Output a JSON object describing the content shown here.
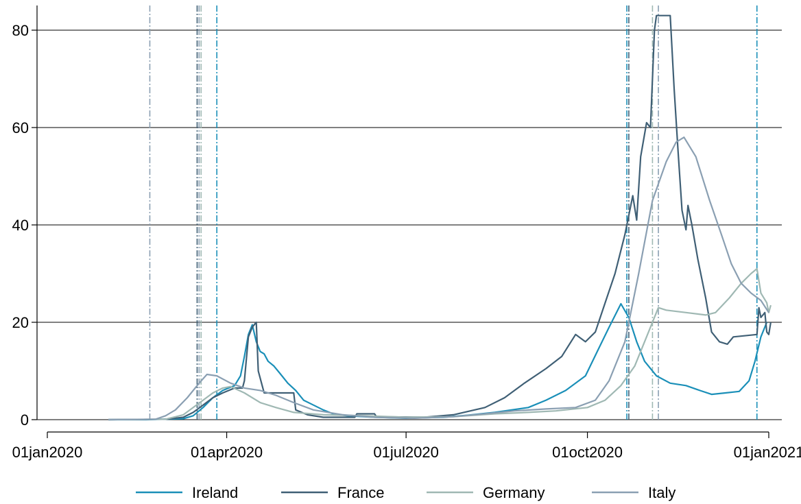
{
  "chart_data": {
    "type": "line",
    "title": "",
    "xlabel": "",
    "ylabel": "",
    "xlim": [
      "2020-01-01",
      "2021-01-01"
    ],
    "ylim": [
      0,
      84
    ],
    "yticks": [
      0,
      20,
      40,
      60,
      80
    ],
    "xticks": [
      {
        "date": "2020-01-01",
        "label": "01jan2020"
      },
      {
        "date": "2020-04-01",
        "label": "01apr2020"
      },
      {
        "date": "2020-07-01",
        "label": "01jul2020"
      },
      {
        "date": "2020-10-01",
        "label": "01oct2020"
      },
      {
        "date": "2021-01-01",
        "label": "01jan2021"
      }
    ],
    "grid": "horizontal",
    "legend_position": "bottom",
    "series": [
      {
        "name": "Ireland",
        "color": "#1a8fb8",
        "points": [
          [
            "2020-02-01",
            0
          ],
          [
            "2020-02-20",
            0
          ],
          [
            "2020-03-10",
            0.2
          ],
          [
            "2020-03-15",
            0.8
          ],
          [
            "2020-03-20",
            2.5
          ],
          [
            "2020-03-25",
            4.5
          ],
          [
            "2020-03-30",
            6.0
          ],
          [
            "2020-04-05",
            7.0
          ],
          [
            "2020-04-08",
            9.0
          ],
          [
            "2020-04-10",
            13.0
          ],
          [
            "2020-04-12",
            17.5
          ],
          [
            "2020-04-14",
            19.5
          ],
          [
            "2020-04-16",
            16.0
          ],
          [
            "2020-04-18",
            14.0
          ],
          [
            "2020-04-20",
            13.5
          ],
          [
            "2020-04-22",
            12.0
          ],
          [
            "2020-04-25",
            11.0
          ],
          [
            "2020-04-28",
            9.5
          ],
          [
            "2020-05-02",
            7.5
          ],
          [
            "2020-05-06",
            6.0
          ],
          [
            "2020-05-10",
            4.0
          ],
          [
            "2020-05-15",
            3.0
          ],
          [
            "2020-05-20",
            2.0
          ],
          [
            "2020-05-25",
            1.2
          ],
          [
            "2020-06-01",
            0.8
          ],
          [
            "2020-06-15",
            0.5
          ],
          [
            "2020-07-01",
            0.3
          ],
          [
            "2020-07-20",
            0.5
          ],
          [
            "2020-08-01",
            0.9
          ],
          [
            "2020-08-15",
            1.5
          ],
          [
            "2020-09-01",
            2.5
          ],
          [
            "2020-09-10",
            4.0
          ],
          [
            "2020-09-20",
            6.0
          ],
          [
            "2020-09-30",
            9.0
          ],
          [
            "2020-10-06",
            14.0
          ],
          [
            "2020-10-12",
            19.0
          ],
          [
            "2020-10-18",
            23.8
          ],
          [
            "2020-10-22",
            21.0
          ],
          [
            "2020-10-26",
            16.0
          ],
          [
            "2020-10-30",
            12.0
          ],
          [
            "2020-11-05",
            9.0
          ],
          [
            "2020-11-12",
            7.5
          ],
          [
            "2020-11-20",
            7.0
          ],
          [
            "2020-11-27",
            6.0
          ],
          [
            "2020-12-03",
            5.2
          ],
          [
            "2020-12-10",
            5.5
          ],
          [
            "2020-12-17",
            5.8
          ],
          [
            "2020-12-22",
            8.0
          ],
          [
            "2020-12-25",
            12.0
          ],
          [
            "2020-12-28",
            17.0
          ],
          [
            "2020-12-31",
            20.0
          ]
        ]
      },
      {
        "name": "France",
        "color": "#3f5f75",
        "points": [
          [
            "2020-02-01",
            0
          ],
          [
            "2020-03-01",
            0.1
          ],
          [
            "2020-03-10",
            0.5
          ],
          [
            "2020-03-15",
            1.5
          ],
          [
            "2020-03-20",
            3.0
          ],
          [
            "2020-03-25",
            4.5
          ],
          [
            "2020-03-30",
            5.5
          ],
          [
            "2020-04-05",
            6.5
          ],
          [
            "2020-04-09",
            6.5
          ],
          [
            "2020-04-10",
            8.0
          ],
          [
            "2020-04-12",
            17.0
          ],
          [
            "2020-04-14",
            19.0
          ],
          [
            "2020-04-16",
            20.0
          ],
          [
            "2020-04-17",
            10.0
          ],
          [
            "2020-04-19",
            7.0
          ],
          [
            "2020-04-20",
            5.5
          ],
          [
            "2020-05-05",
            5.5
          ],
          [
            "2020-05-06",
            2.0
          ],
          [
            "2020-05-12",
            1.0
          ],
          [
            "2020-05-20",
            0.5
          ],
          [
            "2020-06-05",
            0.5
          ],
          [
            "2020-06-06",
            1.2
          ],
          [
            "2020-06-15",
            1.2
          ],
          [
            "2020-06-16",
            0.6
          ],
          [
            "2020-07-10",
            0.5
          ],
          [
            "2020-07-25",
            1.0
          ],
          [
            "2020-08-10",
            2.5
          ],
          [
            "2020-08-20",
            4.5
          ],
          [
            "2020-08-30",
            7.5
          ],
          [
            "2020-09-10",
            10.5
          ],
          [
            "2020-09-18",
            13.0
          ],
          [
            "2020-09-25",
            17.5
          ],
          [
            "2020-09-30",
            16.0
          ],
          [
            "2020-10-05",
            18.0
          ],
          [
            "2020-10-10",
            24.0
          ],
          [
            "2020-10-15",
            30.0
          ],
          [
            "2020-10-20",
            38.0
          ],
          [
            "2020-10-24",
            46.0
          ],
          [
            "2020-10-26",
            41.0
          ],
          [
            "2020-10-28",
            54.0
          ],
          [
            "2020-10-31",
            61.0
          ],
          [
            "2020-11-02",
            60.0
          ],
          [
            "2020-11-04",
            80.0
          ],
          [
            "2020-11-05",
            83.0
          ],
          [
            "2020-11-12",
            83.0
          ],
          [
            "2020-11-14",
            68.0
          ],
          [
            "2020-11-16",
            55.0
          ],
          [
            "2020-11-18",
            43.0
          ],
          [
            "2020-11-20",
            39.0
          ],
          [
            "2020-11-21",
            44.0
          ],
          [
            "2020-11-23",
            40.0
          ],
          [
            "2020-11-26",
            33.0
          ],
          [
            "2020-11-30",
            25.0
          ],
          [
            "2020-12-03",
            18.0
          ],
          [
            "2020-12-07",
            16.0
          ],
          [
            "2020-12-11",
            15.5
          ],
          [
            "2020-12-14",
            17.0
          ],
          [
            "2020-12-26",
            17.5
          ],
          [
            "2020-12-27",
            23.0
          ],
          [
            "2020-12-28",
            21.0
          ],
          [
            "2020-12-30",
            22.0
          ],
          [
            "2020-12-31",
            18.0
          ],
          [
            "2021-01-01",
            17.5
          ],
          [
            "2021-01-02",
            20.0
          ]
        ]
      },
      {
        "name": "Germany",
        "color": "#9fb8b3",
        "points": [
          [
            "2020-02-01",
            0
          ],
          [
            "2020-03-01",
            0.1
          ],
          [
            "2020-03-10",
            1.0
          ],
          [
            "2020-03-15",
            2.5
          ],
          [
            "2020-03-20",
            4.0
          ],
          [
            "2020-03-25",
            5.5
          ],
          [
            "2020-03-30",
            6.5
          ],
          [
            "2020-04-03",
            6.8
          ],
          [
            "2020-04-10",
            5.5
          ],
          [
            "2020-04-18",
            3.5
          ],
          [
            "2020-04-26",
            2.5
          ],
          [
            "2020-05-05",
            1.5
          ],
          [
            "2020-05-20",
            1.0
          ],
          [
            "2020-06-10",
            0.8
          ],
          [
            "2020-07-01",
            0.5
          ],
          [
            "2020-07-25",
            0.6
          ],
          [
            "2020-08-15",
            1.2
          ],
          [
            "2020-09-01",
            1.5
          ],
          [
            "2020-09-15",
            1.8
          ],
          [
            "2020-10-01",
            2.5
          ],
          [
            "2020-10-10",
            4.0
          ],
          [
            "2020-10-18",
            7.0
          ],
          [
            "2020-10-25",
            11.0
          ],
          [
            "2020-10-30",
            16.0
          ],
          [
            "2020-11-03",
            20.0
          ],
          [
            "2020-11-06",
            23.0
          ],
          [
            "2020-11-10",
            22.5
          ],
          [
            "2020-11-20",
            22.0
          ],
          [
            "2020-11-30",
            21.5
          ],
          [
            "2020-12-05",
            22.0
          ],
          [
            "2020-12-12",
            25.0
          ],
          [
            "2020-12-18",
            28.0
          ],
          [
            "2020-12-23",
            30.0
          ],
          [
            "2020-12-26",
            31.0
          ],
          [
            "2020-12-28",
            26.0
          ],
          [
            "2020-12-31",
            24.0
          ],
          [
            "2021-01-01",
            22.0
          ],
          [
            "2021-01-02",
            23.5
          ]
        ]
      },
      {
        "name": "Italy",
        "color": "#8a9fb2",
        "points": [
          [
            "2020-02-01",
            0
          ],
          [
            "2020-02-25",
            0.1
          ],
          [
            "2020-03-01",
            0.8
          ],
          [
            "2020-03-06",
            2.0
          ],
          [
            "2020-03-12",
            4.5
          ],
          [
            "2020-03-18",
            7.5
          ],
          [
            "2020-03-22",
            9.3
          ],
          [
            "2020-03-27",
            9.0
          ],
          [
            "2020-04-03",
            7.5
          ],
          [
            "2020-04-10",
            6.5
          ],
          [
            "2020-04-18",
            6.0
          ],
          [
            "2020-04-26",
            5.0
          ],
          [
            "2020-05-05",
            3.5
          ],
          [
            "2020-05-15",
            2.0
          ],
          [
            "2020-05-30",
            1.0
          ],
          [
            "2020-06-15",
            0.5
          ],
          [
            "2020-07-05",
            0.3
          ],
          [
            "2020-07-25",
            0.6
          ],
          [
            "2020-08-10",
            1.2
          ],
          [
            "2020-08-25",
            1.8
          ],
          [
            "2020-09-10",
            2.2
          ],
          [
            "2020-09-25",
            2.5
          ],
          [
            "2020-10-05",
            4.0
          ],
          [
            "2020-10-12",
            8.0
          ],
          [
            "2020-10-20",
            16.0
          ],
          [
            "2020-10-27",
            30.0
          ],
          [
            "2020-11-03",
            45.0
          ],
          [
            "2020-11-10",
            53.0
          ],
          [
            "2020-11-15",
            57.0
          ],
          [
            "2020-11-19",
            58.0
          ],
          [
            "2020-11-25",
            54.0
          ],
          [
            "2020-12-02",
            45.0
          ],
          [
            "2020-12-08",
            38.0
          ],
          [
            "2020-12-13",
            32.0
          ],
          [
            "2020-12-18",
            28.0
          ],
          [
            "2020-12-23",
            26.0
          ],
          [
            "2020-12-28",
            24.5
          ],
          [
            "2021-01-01",
            22.0
          ]
        ]
      }
    ],
    "vlines": [
      {
        "date": "2020-02-22",
        "color": "#8a9fb2"
      },
      {
        "date": "2020-03-17",
        "color": "#3f5f75"
      },
      {
        "date": "2020-03-18",
        "color": "#8a9fb2"
      },
      {
        "date": "2020-03-19",
        "color": "#9fb8b3"
      },
      {
        "date": "2020-03-27",
        "color": "#1a8fb8"
      },
      {
        "date": "2020-10-21",
        "color": "#1a8fb8"
      },
      {
        "date": "2020-10-22",
        "color": "#3f5f75"
      },
      {
        "date": "2020-11-03",
        "color": "#9fb8b3"
      },
      {
        "date": "2020-11-06",
        "color": "#8a9fb2"
      },
      {
        "date": "2020-12-26",
        "color": "#1a8fb8"
      }
    ]
  }
}
